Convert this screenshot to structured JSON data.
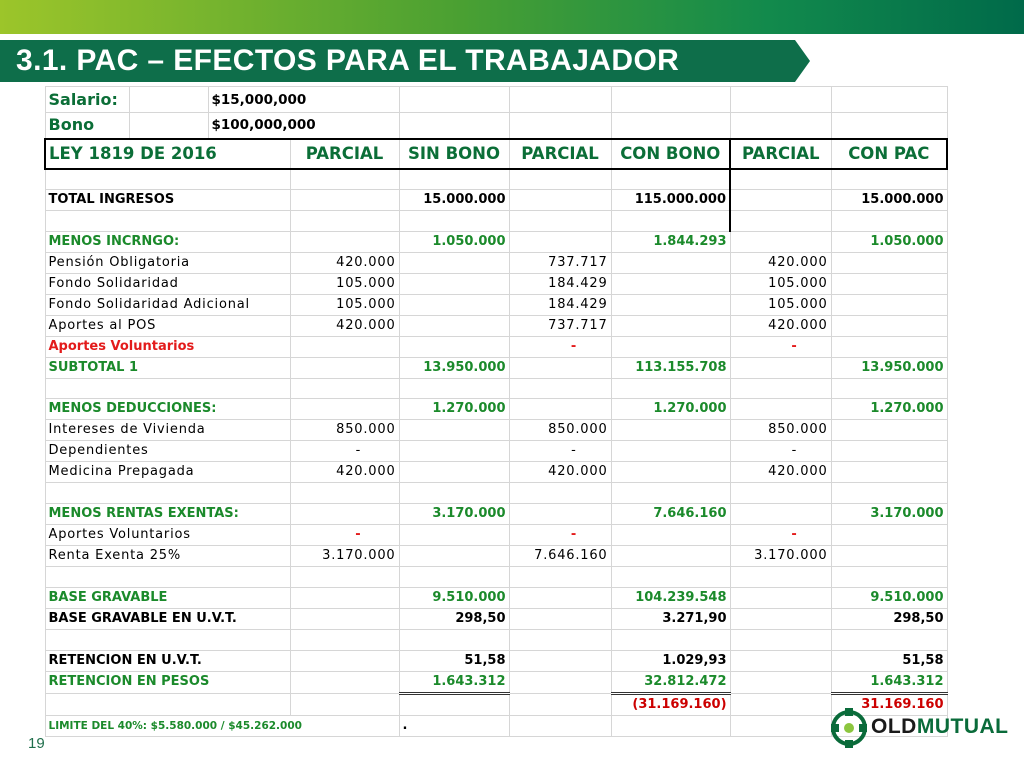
{
  "slide": {
    "title": "3.1. PAC – EFECTOS PARA EL TRABAJADOR",
    "page_number": "19"
  },
  "inputs": {
    "salario_label": "Salario:",
    "salario_value": "$15,000,000",
    "bono_label": "Bono",
    "bono_value": "$100,000,000"
  },
  "table": {
    "headers": [
      "LEY 1819 DE 2016",
      "PARCIAL",
      "SIN BONO",
      "PARCIAL",
      "CON BONO",
      "PARCIAL",
      "CON PAC"
    ],
    "rows": [
      {
        "label": "TOTAL INGRESOS",
        "p1": "",
        "sin_bono": "15.000.000",
        "p2": "",
        "con_bono": "115.000.000",
        "p3": "",
        "con_pac": "15.000.000"
      },
      {
        "label": "MENOS INCRNGO:",
        "p1": "",
        "sin_bono": "1.050.000",
        "p2": "",
        "con_bono": "1.844.293",
        "p3": "",
        "con_pac": "1.050.000"
      },
      {
        "label": "Pensión Obligatoria",
        "p1": "420.000",
        "sin_bono": "",
        "p2": "737.717",
        "con_bono": "",
        "p3": "420.000",
        "con_pac": ""
      },
      {
        "label": "Fondo Solidaridad",
        "p1": "105.000",
        "sin_bono": "",
        "p2": "184.429",
        "con_bono": "",
        "p3": "105.000",
        "con_pac": ""
      },
      {
        "label": "Fondo Solidaridad Adicional",
        "p1": "105.000",
        "sin_bono": "",
        "p2": "184.429",
        "con_bono": "",
        "p3": "105.000",
        "con_pac": ""
      },
      {
        "label": "Aportes al POS",
        "p1": "420.000",
        "sin_bono": "",
        "p2": "737.717",
        "con_bono": "",
        "p3": "420.000",
        "con_pac": ""
      },
      {
        "label": "Aportes Voluntarios",
        "p1": "",
        "sin_bono": "",
        "p2": "-",
        "con_bono": "",
        "p3": "-",
        "con_pac": ""
      },
      {
        "label": "SUBTOTAL 1",
        "p1": "",
        "sin_bono": "13.950.000",
        "p2": "",
        "con_bono": "113.155.708",
        "p3": "",
        "con_pac": "13.950.000"
      },
      {
        "label": "MENOS DEDUCCIONES:",
        "p1": "",
        "sin_bono": "1.270.000",
        "p2": "",
        "con_bono": "1.270.000",
        "p3": "",
        "con_pac": "1.270.000"
      },
      {
        "label": "Intereses de Vivienda",
        "p1": "850.000",
        "sin_bono": "",
        "p2": "850.000",
        "con_bono": "",
        "p3": "850.000",
        "con_pac": ""
      },
      {
        "label": "Dependientes",
        "p1": "-",
        "sin_bono": "",
        "p2": "-",
        "con_bono": "",
        "p3": "-",
        "con_pac": ""
      },
      {
        "label": "Medicina Prepagada",
        "p1": "420.000",
        "sin_bono": "",
        "p2": "420.000",
        "con_bono": "",
        "p3": "420.000",
        "con_pac": ""
      },
      {
        "label": "MENOS RENTAS EXENTAS:",
        "p1": "",
        "sin_bono": "3.170.000",
        "p2": "",
        "con_bono": "7.646.160",
        "p3": "",
        "con_pac": "3.170.000"
      },
      {
        "label": "Aportes Voluntarios",
        "p1": "-",
        "sin_bono": "",
        "p2": "-",
        "con_bono": "",
        "p3": "-",
        "con_pac": ""
      },
      {
        "label": "Renta Exenta 25%",
        "p1": "3.170.000",
        "sin_bono": "",
        "p2": "7.646.160",
        "con_bono": "",
        "p3": "3.170.000",
        "con_pac": ""
      },
      {
        "label": "BASE GRAVABLE",
        "p1": "",
        "sin_bono": "9.510.000",
        "p2": "",
        "con_bono": "104.239.548",
        "p3": "",
        "con_pac": "9.510.000"
      },
      {
        "label": "BASE GRAVABLE EN U.V.T.",
        "p1": "",
        "sin_bono": "298,50",
        "p2": "",
        "con_bono": "3.271,90",
        "p3": "",
        "con_pac": "298,50"
      },
      {
        "label": "RETENCION EN U.V.T.",
        "p1": "",
        "sin_bono": "51,58",
        "p2": "",
        "con_bono": "1.029,93",
        "p3": "",
        "con_pac": "51,58"
      },
      {
        "label": "RETENCION EN PESOS",
        "p1": "",
        "sin_bono": "1.643.312",
        "p2": "",
        "con_bono": "32.812.472",
        "p3": "",
        "con_pac": "1.643.312"
      }
    ],
    "difference": {
      "con_bono": "(31.169.160)",
      "con_pac": "31.169.160"
    },
    "footer_note": "LIMITE DEL 40%: $5.580.000 / $45.262.000",
    "footer_dot": "."
  },
  "logo": {
    "part1": "OLD",
    "part2": "MUTUAL"
  },
  "colors": {
    "brand_green": "#0e6e4a",
    "text_green": "#1b8a2b",
    "red": "#e31b1b"
  }
}
